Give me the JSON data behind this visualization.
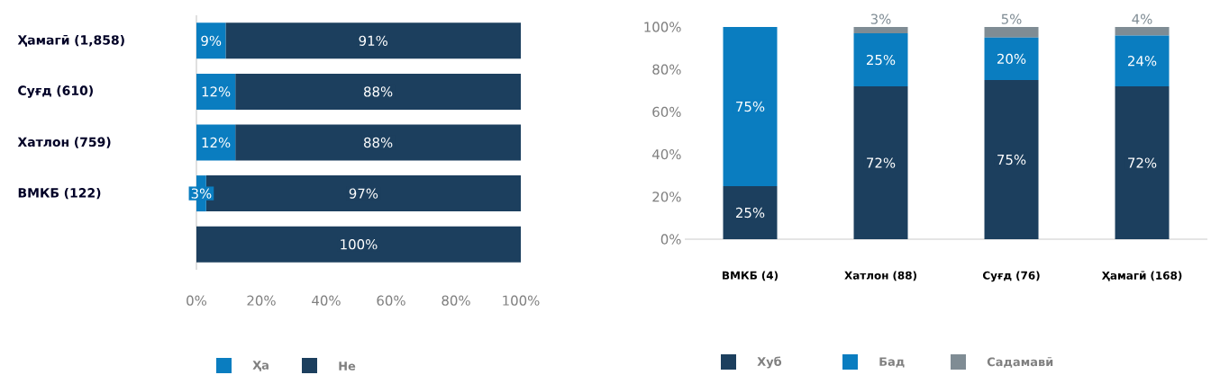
{
  "chart_data": [
    {
      "type": "bar",
      "orientation": "horizontal",
      "stacked": true,
      "categories": [
        "Ҳамагӣ (1,858)",
        "Суғд (610)",
        "Хатлон (759)",
        "ВМКБ (122)",
        null
      ],
      "series": [
        {
          "name": "Ҳа",
          "color": "#0a7dc0",
          "values": [
            9,
            12,
            12,
            3,
            0
          ],
          "value_labels": [
            "9%",
            "12%",
            "12%",
            "3%",
            null
          ]
        },
        {
          "name": "Не",
          "color": "#1c3f5e",
          "values": [
            91,
            88,
            88,
            97,
            100
          ],
          "value_labels": [
            "91%",
            "88%",
            "88%",
            "97%",
            "100%"
          ]
        }
      ],
      "xlim": [
        0,
        100
      ],
      "xticks": [
        {
          "value": 0,
          "label": "0%"
        },
        {
          "value": 20,
          "label": "20%"
        },
        {
          "value": 40,
          "label": "40%"
        },
        {
          "value": 60,
          "label": "60%"
        },
        {
          "value": 80,
          "label": "80%"
        },
        {
          "value": 100,
          "label": "100%"
        }
      ],
      "legend": "bottom"
    },
    {
      "type": "bar",
      "stacked": true,
      "categories": [
        "ВМКБ (4)",
        "Хатлон (88)",
        "Суғд (76)",
        "Ҳамагӣ (168)"
      ],
      "series": [
        {
          "name": "Хуб",
          "color": "#1c3f5e",
          "values": [
            25,
            72,
            75,
            72
          ],
          "value_labels": [
            "25%",
            "72%",
            "75%",
            "72%"
          ]
        },
        {
          "name": "Бад",
          "color": "#0a7dc0",
          "values": [
            75,
            25,
            20,
            24
          ],
          "value_labels": [
            "75%",
            "25%",
            "20%",
            "24%"
          ]
        },
        {
          "name": "Садамавӣ",
          "color": "#7f8c94",
          "values": [
            0,
            3,
            5,
            4
          ],
          "value_labels": [
            null,
            "3%",
            "5%",
            "4%"
          ]
        }
      ],
      "ylim": [
        0,
        100
      ],
      "yticks": [
        {
          "value": 0,
          "label": "0%"
        },
        {
          "value": 20,
          "label": "20%"
        },
        {
          "value": 40,
          "label": "40%"
        },
        {
          "value": 60,
          "label": "60%"
        },
        {
          "value": 80,
          "label": "80%"
        },
        {
          "value": 100,
          "label": "100%"
        }
      ],
      "legend": "bottom"
    }
  ]
}
